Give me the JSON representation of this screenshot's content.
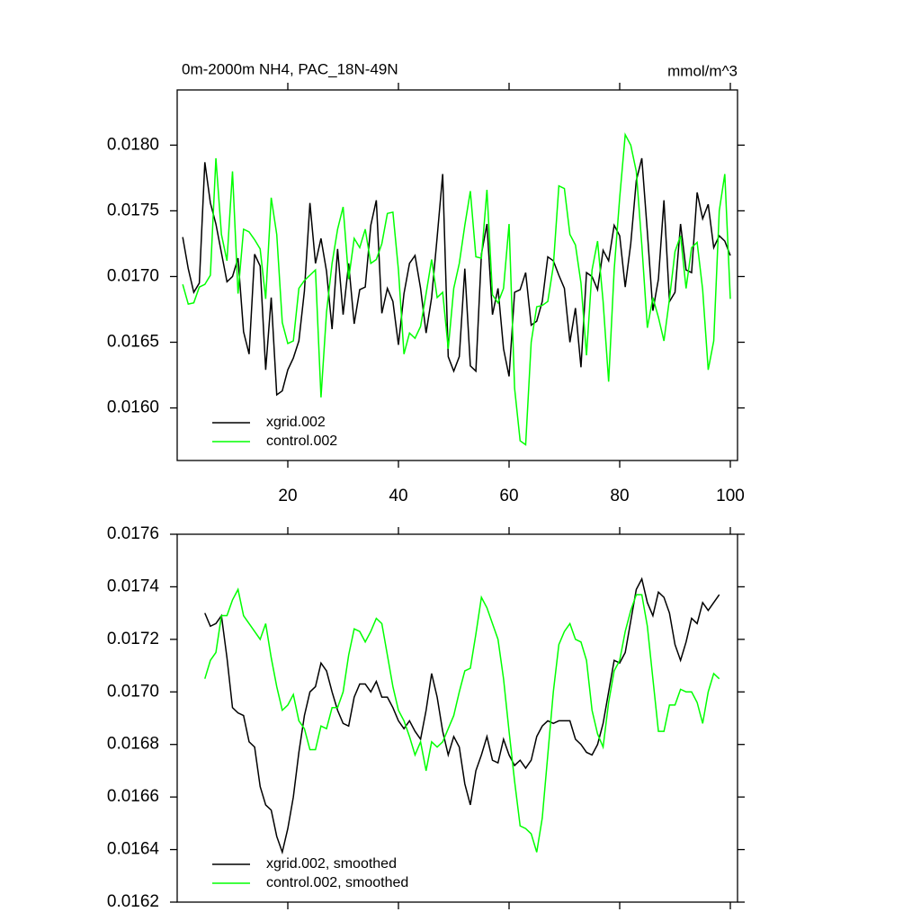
{
  "chart_data": [
    {
      "type": "line",
      "title": "0m-2000m NH4, PAC_18N-49N",
      "units": "mmol/m^3",
      "legend": "lower left",
      "x": [
        1,
        2,
        3,
        4,
        5,
        6,
        7,
        8,
        9,
        10,
        11,
        12,
        13,
        14,
        15,
        16,
        17,
        18,
        19,
        20,
        21,
        22,
        23,
        24,
        25,
        26,
        27,
        28,
        29,
        30,
        31,
        32,
        33,
        34,
        35,
        36,
        37,
        38,
        39,
        40,
        41,
        42,
        43,
        44,
        45,
        46,
        47,
        48,
        49,
        50,
        51,
        52,
        53,
        54,
        55,
        56,
        57,
        58,
        59,
        60,
        61,
        62,
        63,
        64,
        65,
        66,
        67,
        68,
        69,
        70,
        71,
        72,
        73,
        74,
        75,
        76,
        77,
        78,
        79,
        80,
        81,
        82,
        83,
        84,
        85,
        86,
        87,
        88,
        89,
        90,
        91,
        92,
        93,
        94,
        95,
        96,
        97,
        98,
        99,
        100
      ],
      "series": [
        {
          "name": "xgrid.002",
          "color": "#000000",
          "values": [
            0.0173,
            0.01706,
            0.01688,
            0.01695,
            0.01787,
            0.01756,
            0.0174,
            0.01718,
            0.01696,
            0.017,
            0.01714,
            0.01658,
            0.01641,
            0.01717,
            0.01708,
            0.01629,
            0.01684,
            0.0161,
            0.01613,
            0.01629,
            0.01638,
            0.01651,
            0.01689,
            0.01756,
            0.0171,
            0.01729,
            0.01704,
            0.0166,
            0.01721,
            0.01671,
            0.0171,
            0.01664,
            0.0169,
            0.01692,
            0.01739,
            0.01758,
            0.01672,
            0.01691,
            0.01681,
            0.01648,
            0.01687,
            0.0171,
            0.01716,
            0.01691,
            0.01657,
            0.01684,
            0.0173,
            0.01778,
            0.01639,
            0.01628,
            0.01639,
            0.01706,
            0.01632,
            0.01628,
            0.01717,
            0.0174,
            0.01671,
            0.01691,
            0.01645,
            0.01624,
            0.01688,
            0.0169,
            0.01703,
            0.01663,
            0.01666,
            0.01681,
            0.01715,
            0.01712,
            0.01701,
            0.01691,
            0.0165,
            0.01676,
            0.01631,
            0.01703,
            0.017,
            0.0169,
            0.0172,
            0.01712,
            0.01739,
            0.01731,
            0.01692,
            0.01725,
            0.01773,
            0.0179,
            0.01734,
            0.01674,
            0.01698,
            0.01758,
            0.01681,
            0.01688,
            0.0174,
            0.01705,
            0.01703,
            0.01764,
            0.01744,
            0.01755,
            0.01722,
            0.01731,
            0.01727,
            0.01716
          ]
        },
        {
          "name": "control.002",
          "color": "#00ff00",
          "values": [
            0.01694,
            0.01679,
            0.0168,
            0.01692,
            0.01694,
            0.01701,
            0.0179,
            0.01732,
            0.01712,
            0.0178,
            0.01687,
            0.01736,
            0.01734,
            0.01728,
            0.01721,
            0.01683,
            0.0176,
            0.01732,
            0.01665,
            0.01649,
            0.01651,
            0.01691,
            0.01697,
            0.01701,
            0.01705,
            0.01608,
            0.01673,
            0.0171,
            0.01736,
            0.01753,
            0.01698,
            0.01729,
            0.01722,
            0.01736,
            0.0171,
            0.01713,
            0.01725,
            0.01748,
            0.01749,
            0.01705,
            0.01641,
            0.01657,
            0.01653,
            0.01662,
            0.01687,
            0.01713,
            0.01684,
            0.01688,
            0.01645,
            0.01691,
            0.0171,
            0.01739,
            0.01765,
            0.01715,
            0.01714,
            0.01766,
            0.01686,
            0.0168,
            0.01691,
            0.0174,
            0.01615,
            0.01575,
            0.01572,
            0.0165,
            0.01677,
            0.01678,
            0.01681,
            0.01708,
            0.01769,
            0.01767,
            0.01732,
            0.01724,
            0.01695,
            0.0164,
            0.01705,
            0.01727,
            0.01681,
            0.0162,
            0.01705,
            0.0176,
            0.01808,
            0.018,
            0.0178,
            0.01724,
            0.01661,
            0.01684,
            0.01669,
            0.01651,
            0.01683,
            0.01719,
            0.01731,
            0.01691,
            0.01722,
            0.01726,
            0.0169,
            0.01629,
            0.01651,
            0.0175,
            0.01778,
            0.01683
          ]
        }
      ],
      "xlim": [
        0,
        101.3
      ],
      "xticks": [
        20,
        40,
        60,
        80,
        100
      ],
      "ylim": [
        0.0156,
        0.01842
      ],
      "yticks": [
        {
          "value": 0.016,
          "label": "0.0160"
        },
        0.0165,
        {
          "value": 0.017,
          "label": "0.0170"
        },
        0.0175,
        {
          "value": 0.018,
          "label": "0.0180"
        }
      ]
    },
    {
      "type": "line",
      "legend": "lower left",
      "x": [
        5,
        6,
        7,
        8,
        9,
        10,
        11,
        12,
        13,
        14,
        15,
        16,
        17,
        18,
        19,
        20,
        21,
        22,
        23,
        24,
        25,
        26,
        27,
        28,
        29,
        30,
        31,
        32,
        33,
        34,
        35,
        36,
        37,
        38,
        39,
        40,
        41,
        42,
        43,
        44,
        45,
        46,
        47,
        48,
        49,
        50,
        51,
        52,
        53,
        54,
        55,
        56,
        57,
        58,
        59,
        60,
        61,
        62,
        63,
        64,
        65,
        66,
        67,
        68,
        69,
        70,
        71,
        72,
        73,
        74,
        75,
        76,
        77,
        78,
        79,
        80,
        81,
        82,
        83,
        84,
        85,
        86,
        87,
        88,
        89,
        90,
        91,
        92,
        93,
        94,
        95,
        96,
        97,
        98
      ],
      "series": [
        {
          "name": "xgrid.002, smoothed",
          "color": "#000000",
          "values": [
            0.0173,
            0.01725,
            0.01726,
            0.01729,
            0.01713,
            0.01694,
            0.01692,
            0.01691,
            0.01681,
            0.01679,
            0.01664,
            0.01657,
            0.01655,
            0.01645,
            0.01639,
            0.01648,
            0.0166,
            0.01677,
            0.01691,
            0.017,
            0.01702,
            0.01711,
            0.01708,
            0.017,
            0.01693,
            0.01688,
            0.01687,
            0.01698,
            0.01703,
            0.01703,
            0.017,
            0.01704,
            0.01698,
            0.01698,
            0.01694,
            0.01689,
            0.01686,
            0.01689,
            0.01685,
            0.01682,
            0.01693,
            0.01707,
            0.01698,
            0.01685,
            0.01676,
            0.01683,
            0.01679,
            0.01665,
            0.01657,
            0.0167,
            0.01676,
            0.01683,
            0.01674,
            0.01673,
            0.01682,
            0.01676,
            0.01672,
            0.01674,
            0.01671,
            0.01674,
            0.01683,
            0.01687,
            0.01689,
            0.01688,
            0.01689,
            0.01689,
            0.01689,
            0.01682,
            0.0168,
            0.01677,
            0.01676,
            0.0168,
            0.01688,
            0.017,
            0.01712,
            0.01711,
            0.01715,
            0.01727,
            0.01739,
            0.01743,
            0.01734,
            0.01729,
            0.01738,
            0.01736,
            0.0173,
            0.01718,
            0.01712,
            0.01719,
            0.01728,
            0.01726,
            0.01734,
            0.01731,
            0.01734,
            0.01737
          ]
        },
        {
          "name": "control.002, smoothed",
          "color": "#00ff00",
          "values": [
            0.01705,
            0.01712,
            0.01715,
            0.01729,
            0.01729,
            0.01735,
            0.01739,
            0.01729,
            0.01726,
            0.01723,
            0.0172,
            0.01726,
            0.01713,
            0.01702,
            0.01693,
            0.01695,
            0.01699,
            0.01689,
            0.01686,
            0.01678,
            0.01678,
            0.01687,
            0.01686,
            0.01694,
            0.01694,
            0.017,
            0.01714,
            0.01724,
            0.01723,
            0.01719,
            0.01723,
            0.01728,
            0.01726,
            0.01714,
            0.01702,
            0.01693,
            0.01689,
            0.01683,
            0.01676,
            0.01681,
            0.0167,
            0.01681,
            0.01679,
            0.01681,
            0.01686,
            0.01691,
            0.017,
            0.01708,
            0.01709,
            0.01722,
            0.01736,
            0.01732,
            0.01726,
            0.0172,
            0.01705,
            0.01685,
            0.01666,
            0.01649,
            0.01648,
            0.01646,
            0.01639,
            0.01652,
            0.01676,
            0.017,
            0.01718,
            0.01723,
            0.01726,
            0.0172,
            0.01719,
            0.01712,
            0.01693,
            0.01684,
            0.01679,
            0.01696,
            0.01708,
            0.01712,
            0.01723,
            0.01731,
            0.01737,
            0.01737,
            0.01725,
            0.01705,
            0.01685,
            0.01685,
            0.01695,
            0.01695,
            0.01701,
            0.017,
            0.017,
            0.01696,
            0.01688,
            0.017,
            0.01707,
            0.01705
          ]
        }
      ],
      "xlim": [
        0,
        101.3
      ],
      "xticks": [
        20,
        40,
        60,
        80,
        100
      ],
      "xtick_labels": false,
      "ylim": [
        0.0162,
        0.0176
      ],
      "yticks": [
        0.0162,
        0.0164,
        0.0166,
        0.0168,
        {
          "value": 0.017,
          "label": "0.0170"
        },
        0.0172,
        0.0174,
        0.0176
      ]
    }
  ]
}
